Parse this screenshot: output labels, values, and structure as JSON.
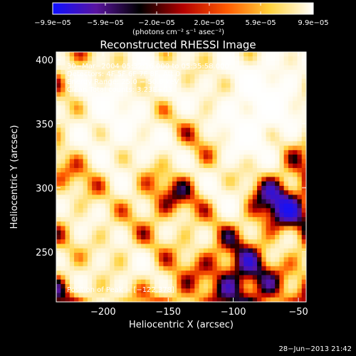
{
  "chart_data": {
    "type": "heatmap",
    "title": "Reconstructed RHESSI Image",
    "xlabel": "Heliocentric X (arcsec)",
    "ylabel": "Heliocentric Y (arcsec)",
    "xlim": [
      -236,
      -44
    ],
    "ylim": [
      211,
      406
    ],
    "xticks": [
      -200,
      -150,
      -100,
      -50
    ],
    "xtick_labels": [
      "−200",
      "−150",
      "−100",
      "−50"
    ],
    "yticks": [
      250,
      300,
      350,
      400
    ],
    "ytick_labels": [
      "250",
      "300",
      "350",
      "400"
    ],
    "colorbar": {
      "ticks": [
        -9.9e-05,
        -5.9e-05,
        -2e-05,
        2e-05,
        5.9e-05,
        9.9e-05
      ],
      "tick_labels": [
        "−9.9e−05",
        "−5.9e−05",
        "−2.0e−05",
        "2.0e−05",
        "5.9e−05",
        "9.9e−05"
      ],
      "unit_label": "(photons cm⁻² s⁻¹ asec⁻²)",
      "range": [
        -9.9e-05,
        9.9e-05
      ],
      "colors": [
        "#1010ff",
        "#5a14a0",
        "#000000",
        "#b40000",
        "#ff5a00",
        "#ffd23c",
        "#ffffff"
      ]
    },
    "annotations": [
      "30−Mar−2004 05:32:16.000 to 05:35:58.000",
      "Detectors: 4F 5F 6F 7F 8F, Att 0",
      "Energy Range: 25.0 − 50.0 keV",
      "Clean    Total counts: 3.23E+03",
      "Position of Peak = [−122,378]"
    ],
    "peak": [
      -122,
      378
    ]
  },
  "footer": {
    "date": "28−Jun−2013 21:42"
  }
}
